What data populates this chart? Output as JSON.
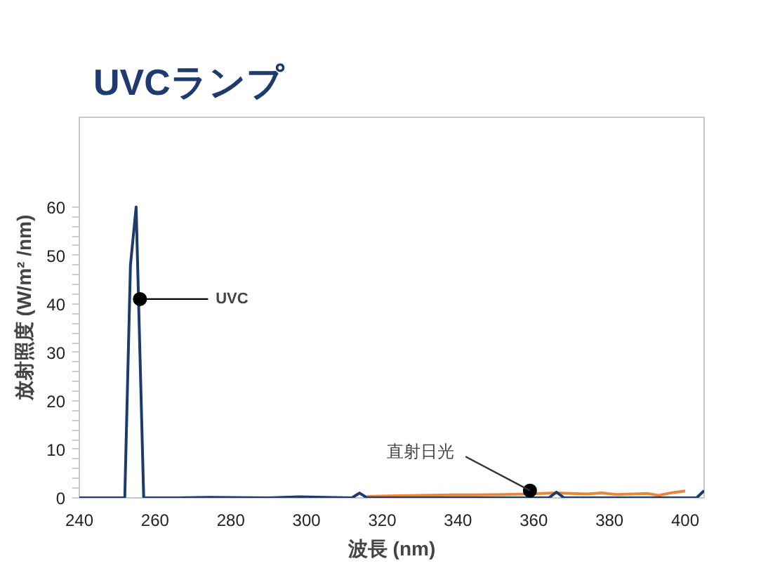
{
  "chart_data": {
    "type": "line",
    "title": "UVCランプ",
    "xlabel": "波長 (nm)",
    "ylabel": "放射照度 (W/m² /nm)",
    "xlim": [
      240,
      405
    ],
    "xticks": [
      240,
      260,
      280,
      300,
      320,
      340,
      360,
      380,
      400
    ],
    "ylim": [
      0,
      78.5
    ],
    "yticks": [
      0,
      {
        "value": 2,
        "label": null
      },
      {
        "value": 4,
        "label": null
      },
      {
        "value": 6,
        "label": null
      },
      {
        "value": 8,
        "label": null
      },
      10,
      {
        "value": 12,
        "label": null
      },
      {
        "value": 14,
        "label": null
      },
      {
        "value": 16,
        "label": null
      },
      {
        "value": 18,
        "label": null
      },
      20,
      {
        "value": 22,
        "label": null
      },
      {
        "value": 24,
        "label": null
      },
      {
        "value": 26,
        "label": null
      },
      {
        "value": 28,
        "label": null
      },
      30,
      {
        "value": 32,
        "label": null
      },
      {
        "value": 34,
        "label": null
      },
      {
        "value": 36,
        "label": null
      },
      {
        "value": 38,
        "label": null
      },
      40,
      {
        "value": 42,
        "label": null
      },
      {
        "value": 44,
        "label": null
      },
      {
        "value": 46,
        "label": null
      },
      {
        "value": 48,
        "label": null
      },
      50,
      {
        "value": 52,
        "label": null
      },
      {
        "value": 54,
        "label": null
      },
      {
        "value": 56,
        "label": null
      },
      {
        "value": 58,
        "label": null
      },
      60
    ],
    "grid": false,
    "marker": "none",
    "line_style": "solid",
    "series": [
      {
        "color": "#e8873a",
        "x": [
          316,
          322,
          330,
          338,
          345,
          352,
          358,
          362,
          366,
          370,
          374,
          378,
          382,
          386,
          390,
          393,
          396,
          400
        ],
        "values": [
          0.3,
          0.4,
          0.5,
          0.6,
          0.6,
          0.7,
          0.8,
          0.9,
          1.0,
          0.9,
          0.8,
          1.0,
          0.7,
          0.8,
          0.9,
          0.5,
          1.0,
          1.4
        ]
      },
      {
        "color": "#1f3a6e",
        "x": [
          240,
          252,
          253.5,
          255,
          257,
          266,
          274,
          290,
          298,
          312,
          314,
          316,
          364,
          366,
          368,
          403,
          405
        ],
        "values": [
          0,
          0,
          48,
          60,
          0,
          0,
          0.1,
          0,
          0.2,
          0,
          1.0,
          0,
          0,
          1.2,
          0,
          0,
          1.5
        ]
      }
    ],
    "annotations": [
      {
        "text": "UVC",
        "x": 256,
        "y": 41
      },
      {
        "text": "直射日光",
        "x": 359,
        "y": 1.5
      }
    ]
  }
}
